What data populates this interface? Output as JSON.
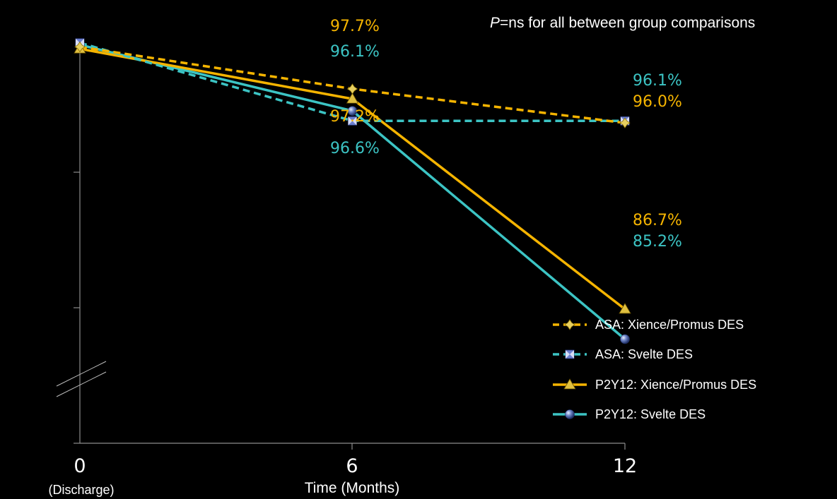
{
  "chart_data": {
    "type": "line",
    "title": "",
    "xlabel": "Time (Months)",
    "ylabel": "",
    "note_prefix": "P",
    "note_suffix": "=ns for all between group comparisons",
    "x": [
      0,
      6,
      12
    ],
    "x_tick_labels": [
      "0",
      "6",
      "12"
    ],
    "x_tick_sublabels": [
      "(Discharge)",
      "",
      ""
    ],
    "ylim": [
      80,
      100
    ],
    "grid": false,
    "y_axis_break": true,
    "legend_position": "bottom-right",
    "series": [
      {
        "name": "ASA: Xience/Promus DES",
        "values": [
          99.8,
          97.7,
          96.0
        ],
        "color": "#f5b400",
        "line_style": "dashed",
        "marker": "diamond-star",
        "labels": [
          "",
          "97.7%",
          "96.0%"
        ]
      },
      {
        "name": "ASA: Svelte DES",
        "values": [
          100.0,
          96.1,
          96.1
        ],
        "color": "#3cc4c4",
        "line_style": "dashed",
        "marker": "square-bowtie",
        "labels": [
          "",
          "96.1%",
          "96.1%"
        ]
      },
      {
        "name": "P2Y12: Xience/Promus DES",
        "values": [
          99.7,
          97.2,
          86.7
        ],
        "color": "#f5b400",
        "line_style": "solid",
        "marker": "triangle",
        "labels": [
          "",
          "97.2%",
          "86.7%"
        ]
      },
      {
        "name": "P2Y12: Svelte DES",
        "values": [
          99.9,
          96.6,
          85.2
        ],
        "color": "#3cc4c4",
        "line_style": "solid",
        "marker": "sphere",
        "labels": [
          "",
          "96.6%",
          "85.2%"
        ]
      }
    ]
  }
}
